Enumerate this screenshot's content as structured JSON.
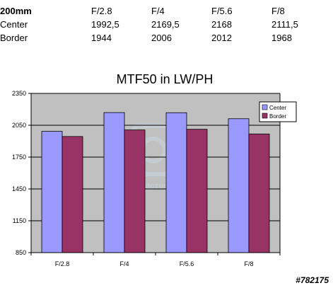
{
  "table": {
    "header": [
      "200mm",
      "F/2.8",
      "F/4",
      "F/5.6",
      "F/8"
    ],
    "rows": [
      [
        "Center",
        "1992,5",
        "2169,5",
        "2168",
        "2111,5"
      ],
      [
        "Border",
        "1944",
        "2006",
        "2012",
        "1968"
      ]
    ]
  },
  "chart_data": {
    "type": "bar",
    "title": "MTF50 in LW/PH",
    "xlabel": "",
    "ylabel": "",
    "categories": [
      "F/2.8",
      "F/4",
      "F/5.6",
      "F/8"
    ],
    "series": [
      {
        "name": "Center",
        "values": [
          1992.5,
          2169.5,
          2168,
          2111.5
        ],
        "color": "#9999ff"
      },
      {
        "name": "Border",
        "values": [
          1944,
          2006,
          2012,
          1968
        ],
        "color": "#993366"
      }
    ],
    "ylim": [
      850,
      2350
    ],
    "yticks": [
      "850",
      "1150",
      "1450",
      "1750",
      "2050",
      "2350"
    ],
    "grid": true,
    "legend": "top-right",
    "plot_background": "#c0c0c0",
    "watermark": "photozone"
  },
  "image_id": "#782175"
}
